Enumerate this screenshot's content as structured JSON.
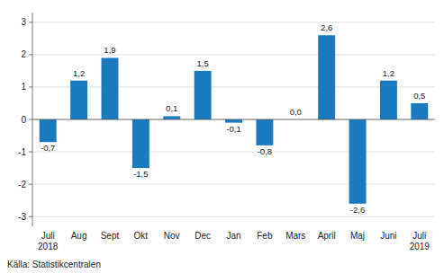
{
  "chart_data": {
    "type": "bar",
    "categories": [
      "Juli\n2018",
      "Aug",
      "Sept",
      "Okt",
      "Nov",
      "Dec",
      "Jan",
      "Feb",
      "Mars",
      "April",
      "Maj",
      "Juni",
      "Juli\n2019"
    ],
    "values": [
      -0.7,
      1.2,
      1.9,
      -1.5,
      0.1,
      1.5,
      -0.1,
      -0.8,
      0.0,
      2.6,
      -2.6,
      1.2,
      0.5
    ],
    "value_labels": [
      "-0,7",
      "1,2",
      "1,9",
      "-1,5",
      "0,1",
      "1,5",
      "-0,1",
      "-0,8",
      "0,0",
      "2,6",
      "-2,6",
      "1,2",
      "0,5"
    ],
    "data_labels": true,
    "color": "#1a7abf",
    "ylim": [
      -3.3,
      3.3
    ],
    "yticks": [
      -3,
      -2,
      -1,
      0,
      1,
      2,
      3
    ],
    "grid": true,
    "annotations": [
      "Källa: Statistikcentralen"
    ]
  }
}
